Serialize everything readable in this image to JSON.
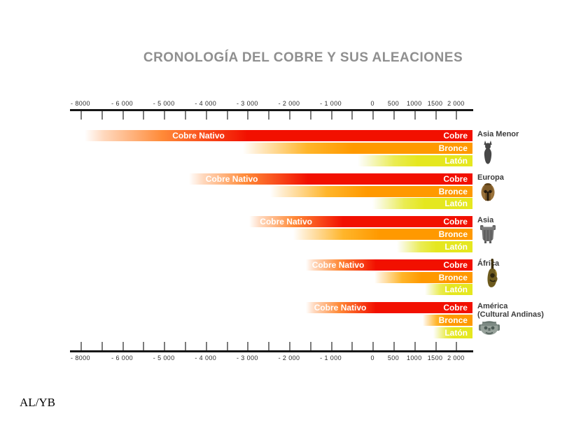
{
  "page": {
    "credit": "AL/YB",
    "background": "#ffffff"
  },
  "chart_data": {
    "type": "bar",
    "subtype": "horizontal-timeline-gantt",
    "title": "CRONOLOGÍA DEL COBRE Y SUS ALEACIONES",
    "axis": {
      "unit": "year",
      "orientation": "horizontal",
      "duplicated": "top-and-bottom",
      "tick_count": 19,
      "scale_note": "first two tick gaps = 1000 years (-8000 to -6000), remaining gaps = 500 years",
      "range_years": [
        -8000,
        2400
      ],
      "labeled_ticks": [
        {
          "label": "- 8000",
          "tick_index": 0,
          "year": -8000
        },
        {
          "label": "- 6 000",
          "tick_index": 2,
          "year": -6000
        },
        {
          "label": "- 5 000",
          "tick_index": 4,
          "year": -5000
        },
        {
          "label": "- 4 000",
          "tick_index": 6,
          "year": -4000
        },
        {
          "label": "- 3 000",
          "tick_index": 8,
          "year": -3000
        },
        {
          "label": "- 2 000",
          "tick_index": 10,
          "year": -2000
        },
        {
          "label": "- 1 000",
          "tick_index": 12,
          "year": -1000
        },
        {
          "label": "0",
          "tick_index": 14,
          "year": 0
        },
        {
          "label": "500",
          "tick_index": 15,
          "year": 500
        },
        {
          "label": "1000",
          "tick_index": 16,
          "year": 1000
        },
        {
          "label": "1500",
          "tick_index": 17,
          "year": 1500
        },
        {
          "label": "2 000",
          "tick_index": 18,
          "year": 2000
        }
      ]
    },
    "materials": [
      {
        "key": "cobre",
        "label": "Cobre",
        "color": "#f21000"
      },
      {
        "key": "bronce",
        "label": "Bronce",
        "color": "#ff9900"
      },
      {
        "key": "laton",
        "label": "Latón",
        "color": "#e5e71f"
      }
    ],
    "native_copper_label": "Cobre Nativo",
    "regions": [
      {
        "name": "Asia Menor",
        "sub": "",
        "icon": "anatolian-idol-icon",
        "native_label_year": -4800,
        "bars": [
          {
            "material": "cobre",
            "start_year": -7800,
            "end_year": 2400
          },
          {
            "material": "bronce",
            "start_year": -3100,
            "end_year": 2400
          },
          {
            "material": "laton",
            "start_year": -350,
            "end_year": 2400
          }
        ]
      },
      {
        "name": "Europa",
        "sub": "",
        "icon": "greek-helmet-icon",
        "native_label_year": -4000,
        "bars": [
          {
            "material": "cobre",
            "start_year": -4400,
            "end_year": 2400
          },
          {
            "material": "bronce",
            "start_year": -2450,
            "end_year": 2400
          },
          {
            "material": "laton",
            "start_year": 0,
            "end_year": 2400
          }
        ]
      },
      {
        "name": "Asia",
        "sub": "",
        "icon": "bronze-vessel-icon",
        "native_label_year": -2700,
        "bars": [
          {
            "material": "cobre",
            "start_year": -2950,
            "end_year": 2400
          },
          {
            "material": "bronce",
            "start_year": -1900,
            "end_year": 2400
          },
          {
            "material": "laton",
            "start_year": 580,
            "end_year": 2400
          }
        ]
      },
      {
        "name": "África",
        "sub": "",
        "icon": "african-mask-icon",
        "native_label_year": -1450,
        "bars": [
          {
            "material": "cobre",
            "start_year": -1600,
            "end_year": 2400
          },
          {
            "material": "bronce",
            "start_year": 50,
            "end_year": 2400
          },
          {
            "material": "laton",
            "start_year": 1250,
            "end_year": 2400
          }
        ]
      },
      {
        "name": "América",
        "sub": "(Cultural Andinas)",
        "icon": "andean-stone-face-icon",
        "native_label_year": -1400,
        "bars": [
          {
            "material": "cobre",
            "start_year": -1600,
            "end_year": 2400
          },
          {
            "material": "bronce",
            "start_year": 1200,
            "end_year": 2400
          },
          {
            "material": "laton",
            "start_year": 1450,
            "end_year": 2400
          }
        ]
      }
    ]
  }
}
